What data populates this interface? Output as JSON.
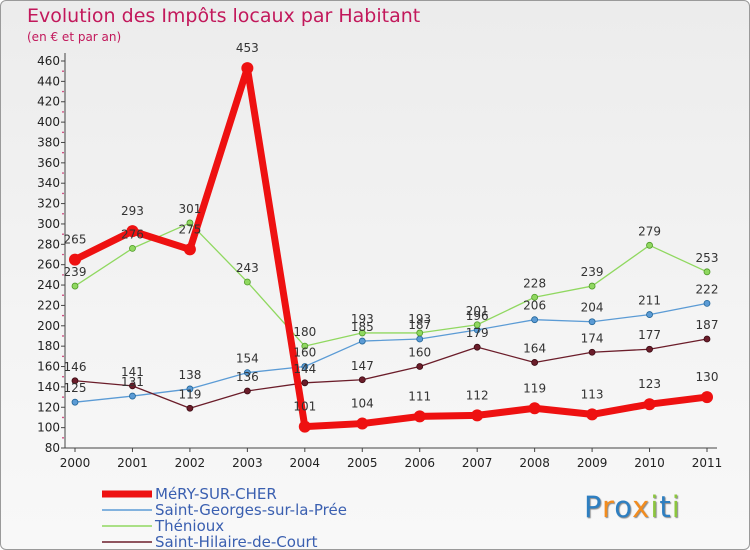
{
  "chart_data": {
    "type": "line",
    "title": "Evolution des Impôts locaux par Habitant",
    "subtitle": "(en € et par an)",
    "xlabel": "",
    "ylabel": "",
    "ylim": [
      80,
      460
    ],
    "ytick_step": 20,
    "grid": false,
    "legend_position": "bottom-left",
    "categories": [
      "2000",
      "2001",
      "2002",
      "2003",
      "2004",
      "2005",
      "2006",
      "2007",
      "2008",
      "2009",
      "2010",
      "2011"
    ],
    "series": [
      {
        "name": "MéRY-SUR-CHER",
        "color": "#ee1111",
        "values": [
          265,
          293,
          275,
          453,
          101,
          104,
          111,
          112,
          119,
          113,
          123,
          130
        ],
        "labels": [
          "265",
          "293",
          "275",
          "453",
          "101",
          "104",
          "111",
          "112",
          "119",
          "113",
          "123",
          "130"
        ]
      },
      {
        "name": "Saint-Georges-sur-la-Prée",
        "color": "#5b9bd5",
        "values": [
          125,
          131,
          138,
          154,
          160,
          185,
          187,
          196,
          206,
          204,
          211,
          222
        ],
        "labels": [
          "125",
          "131",
          "138",
          "154",
          "160",
          "185",
          "187",
          "196",
          "206",
          "204",
          "211",
          "222"
        ]
      },
      {
        "name": "Thénioux",
        "color": "#90d860",
        "values": [
          239,
          276,
          301,
          243,
          180,
          193,
          193,
          201,
          228,
          239,
          279,
          253
        ],
        "labels": [
          "239",
          "276",
          "301",
          "243",
          "180",
          "193",
          "193",
          "201",
          "228",
          "239",
          "279",
          "253"
        ]
      },
      {
        "name": "Saint-Hilaire-de-Court",
        "color": "#6b1d2a",
        "values": [
          146,
          141,
          119,
          136,
          144,
          147,
          160,
          179,
          164,
          174,
          177,
          187
        ],
        "labels": [
          "146",
          "141",
          "119",
          "136",
          "144",
          "147",
          "160",
          "179",
          "164",
          "174",
          "177",
          "187"
        ]
      }
    ]
  },
  "logo": {
    "text": "Proxiti",
    "letters": [
      {
        "char": "P",
        "color": "#2e7fc1"
      },
      {
        "char": "r",
        "color": "#f28c1e"
      },
      {
        "char": "o",
        "color": "#2e7fc1"
      },
      {
        "char": "x",
        "color": "#f28c1e"
      },
      {
        "char": "i",
        "color": "#8cc63f"
      },
      {
        "char": "t",
        "color": "#2e7fc1"
      },
      {
        "char": "i",
        "color": "#8cc63f"
      }
    ]
  }
}
